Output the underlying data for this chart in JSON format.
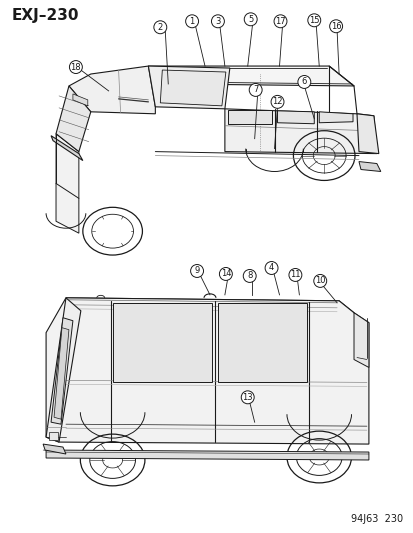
{
  "title": "EXJ–230",
  "footer": "94J63  230",
  "bg": "#ffffff",
  "lc": "#1a1a1a",
  "title_fs": 11,
  "footer_fs": 7,
  "callout_r": 6.5,
  "callout_fs": 6.0
}
